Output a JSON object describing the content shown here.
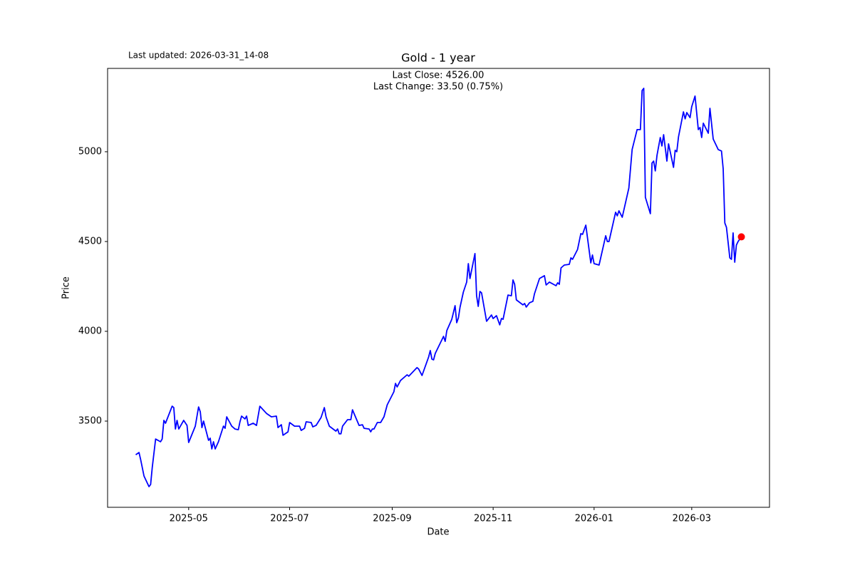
{
  "chart_data": {
    "type": "line",
    "title": "Gold - 1 year",
    "subtitle": "Last updated: 2026-03-31_14-08",
    "annotations": [
      "Last Close: 4526.00",
      "Last Change: 33.50 (0.75%)"
    ],
    "xlabel": "Date",
    "ylabel": "Price",
    "x": [
      "2025-03-30",
      "2025-04-01",
      "2025-04-02",
      "2025-04-04",
      "2025-04-07",
      "2025-04-08",
      "2025-04-09",
      "2025-04-11",
      "2025-04-14",
      "2025-04-15",
      "2025-04-16",
      "2025-04-17",
      "2025-04-21",
      "2025-04-22",
      "2025-04-23",
      "2025-04-24",
      "2025-04-25",
      "2025-04-28",
      "2025-04-30",
      "2025-05-01",
      "2025-05-05",
      "2025-05-07",
      "2025-05-08",
      "2025-05-09",
      "2025-05-10",
      "2025-05-13",
      "2025-05-14",
      "2025-05-15",
      "2025-05-16",
      "2025-05-17",
      "2025-05-19",
      "2025-05-22",
      "2025-05-23",
      "2025-05-24",
      "2025-05-27",
      "2025-05-29",
      "2025-05-31",
      "2025-06-01",
      "2025-06-02",
      "2025-06-04",
      "2025-06-05",
      "2025-06-06",
      "2025-06-09",
      "2025-06-11",
      "2025-06-13",
      "2025-06-17",
      "2025-06-20",
      "2025-06-23",
      "2025-06-24",
      "2025-06-26",
      "2025-06-27",
      "2025-06-30",
      "2025-07-01",
      "2025-07-04",
      "2025-07-07",
      "2025-07-08",
      "2025-07-10",
      "2025-07-11",
      "2025-07-14",
      "2025-07-15",
      "2025-07-17",
      "2025-07-20",
      "2025-07-22",
      "2025-07-23",
      "2025-07-25",
      "2025-07-29",
      "2025-07-30",
      "2025-07-31",
      "2025-08-01",
      "2025-08-02",
      "2025-08-05",
      "2025-08-07",
      "2025-08-08",
      "2025-08-12",
      "2025-08-14",
      "2025-08-15",
      "2025-08-18",
      "2025-08-19",
      "2025-08-20",
      "2025-08-21",
      "2025-08-23",
      "2025-08-25",
      "2025-08-27",
      "2025-08-29",
      "2025-09-02",
      "2025-09-03",
      "2025-09-04",
      "2025-09-06",
      "2025-09-10",
      "2025-09-11",
      "2025-09-16",
      "2025-09-17",
      "2025-09-19",
      "2025-09-23",
      "2025-09-24",
      "2025-09-25",
      "2025-09-26",
      "2025-09-27",
      "2025-10-02",
      "2025-10-03",
      "2025-10-04",
      "2025-10-07",
      "2025-10-09",
      "2025-10-10",
      "2025-10-11",
      "2025-10-12",
      "2025-10-14",
      "2025-10-16",
      "2025-10-17",
      "2025-10-18",
      "2025-10-21",
      "2025-10-22",
      "2025-10-23",
      "2025-10-24",
      "2025-10-25",
      "2025-10-28",
      "2025-10-31",
      "2025-11-01",
      "2025-11-03",
      "2025-11-05",
      "2025-11-06",
      "2025-11-07",
      "2025-11-10",
      "2025-11-12",
      "2025-11-13",
      "2025-11-14",
      "2025-11-15",
      "2025-11-19",
      "2025-11-20",
      "2025-11-21",
      "2025-11-23",
      "2025-11-25",
      "2025-11-26",
      "2025-11-29",
      "2025-12-02",
      "2025-12-03",
      "2025-12-05",
      "2025-12-09",
      "2025-12-10",
      "2025-12-11",
      "2025-12-12",
      "2025-12-14",
      "2025-12-17",
      "2025-12-18",
      "2025-12-19",
      "2025-12-22",
      "2025-12-24",
      "2025-12-25",
      "2025-12-27",
      "2025-12-30",
      "2025-12-31",
      "2026-01-01",
      "2026-01-04",
      "2026-01-08",
      "2026-01-09",
      "2026-01-10",
      "2026-01-14",
      "2026-01-15",
      "2026-01-16",
      "2026-01-18",
      "2026-01-22",
      "2026-01-24",
      "2026-01-27",
      "2026-01-29",
      "2026-01-30",
      "2026-01-31",
      "2026-02-01",
      "2026-02-04",
      "2026-02-05",
      "2026-02-06",
      "2026-02-07",
      "2026-02-08",
      "2026-02-10",
      "2026-02-11",
      "2026-02-12",
      "2026-02-14",
      "2026-02-15",
      "2026-02-18",
      "2026-02-19",
      "2026-02-20",
      "2026-02-21",
      "2026-02-24",
      "2026-02-25",
      "2026-02-26",
      "2026-02-28",
      "2026-03-01",
      "2026-03-03",
      "2026-03-05",
      "2026-03-06",
      "2026-03-07",
      "2026-03-08",
      "2026-03-11",
      "2026-03-12",
      "2026-03-14",
      "2026-03-17",
      "2026-03-19",
      "2026-03-20",
      "2026-03-21",
      "2026-03-22",
      "2026-03-24",
      "2026-03-25",
      "2026-03-26",
      "2026-03-27",
      "2026-03-28",
      "2026-03-29",
      "2026-03-31"
    ],
    "series": [
      {
        "name": "Gold",
        "color": "blue",
        "values": [
          3313,
          3325,
          3286,
          3194,
          3135,
          3147,
          3242,
          3400,
          3385,
          3400,
          3504,
          3488,
          3583,
          3575,
          3456,
          3504,
          3456,
          3504,
          3476,
          3381,
          3472,
          3579,
          3552,
          3464,
          3500,
          3393,
          3405,
          3345,
          3385,
          3345,
          3385,
          3472,
          3460,
          3524,
          3472,
          3456,
          3452,
          3496,
          3528,
          3512,
          3528,
          3476,
          3488,
          3476,
          3583,
          3543,
          3524,
          3528,
          3464,
          3480,
          3421,
          3440,
          3492,
          3472,
          3472,
          3448,
          3460,
          3496,
          3492,
          3468,
          3476,
          3520,
          3575,
          3524,
          3472,
          3444,
          3456,
          3429,
          3429,
          3472,
          3508,
          3508,
          3563,
          3476,
          3480,
          3460,
          3456,
          3440,
          3456,
          3456,
          3492,
          3492,
          3524,
          3591,
          3663,
          3710,
          3690,
          3726,
          3758,
          3750,
          3798,
          3790,
          3754,
          3857,
          3893,
          3845,
          3841,
          3877,
          3972,
          3944,
          4004,
          4067,
          4143,
          4048,
          4075,
          4135,
          4218,
          4274,
          4377,
          4294,
          4433,
          4198,
          4139,
          4222,
          4214,
          4056,
          4091,
          4071,
          4087,
          4036,
          4071,
          4067,
          4202,
          4198,
          4286,
          4262,
          4175,
          4147,
          4155,
          4135,
          4159,
          4167,
          4210,
          4294,
          4310,
          4258,
          4274,
          4254,
          4270,
          4262,
          4353,
          4369,
          4373,
          4409,
          4401,
          4456,
          4544,
          4540,
          4591,
          4381,
          4425,
          4377,
          4369,
          4532,
          4500,
          4500,
          4663,
          4643,
          4671,
          4635,
          4798,
          5012,
          5123,
          5123,
          5341,
          5353,
          4746,
          4655,
          4937,
          4948,
          4893,
          4980,
          5079,
          5032,
          5095,
          4948,
          5044,
          4913,
          5008,
          5000,
          5083,
          5222,
          5183,
          5218,
          5190,
          5250,
          5310,
          5123,
          5135,
          5079,
          5159,
          5103,
          5242,
          5071,
          5012,
          5004,
          4905,
          4603,
          4579,
          4409,
          4401,
          4548,
          4385,
          4480,
          4500,
          4526
        ]
      }
    ],
    "last_point_color": "red",
    "xlim": [
      "2025-03-13",
      "2026-04-17"
    ],
    "xticks": [
      {
        "value": "2025-05-01",
        "label": "2025-05"
      },
      {
        "value": "2025-07-01",
        "label": "2025-07"
      },
      {
        "value": "2025-09-01",
        "label": "2025-09"
      },
      {
        "value": "2025-11-01",
        "label": "2025-11"
      },
      {
        "value": "2026-01-01",
        "label": "2026-01"
      },
      {
        "value": "2026-03-01",
        "label": "2026-03"
      }
    ],
    "ylim": [
      3020,
      5464
    ],
    "yticks": [
      3500,
      4000,
      4500,
      5000
    ],
    "grid": false
  }
}
